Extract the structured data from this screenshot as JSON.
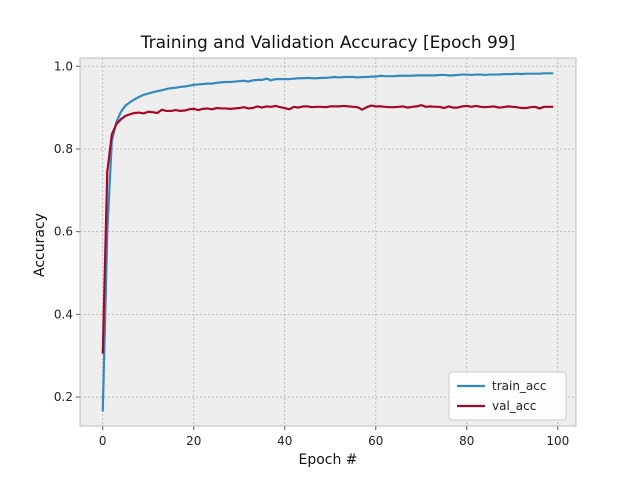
{
  "chart_data": {
    "type": "line",
    "title": "Training and Validation Accuracy [Epoch 99]",
    "xlabel": "Epoch #",
    "ylabel": "Accuracy",
    "xlim": [
      -5,
      104
    ],
    "ylim": [
      0.13,
      1.02
    ],
    "xticks": [
      0,
      20,
      40,
      60,
      80,
      100
    ],
    "yticks": [
      0.2,
      0.4,
      0.6,
      0.8,
      1.0
    ],
    "ytick_labels": [
      "0.2",
      "0.4",
      "0.6",
      "0.8",
      "1.0"
    ],
    "grid": true,
    "legend_position": "lower-right",
    "plot_background": "#eeeeee",
    "grid_color": "#b0b0b0",
    "series": [
      {
        "name": "train_acc",
        "color": "#348abd",
        "x": [
          0,
          1,
          2,
          3,
          4,
          5,
          6,
          7,
          8,
          9,
          10,
          11,
          12,
          13,
          14,
          15,
          16,
          17,
          18,
          19,
          20,
          21,
          22,
          23,
          24,
          25,
          26,
          27,
          28,
          29,
          30,
          31,
          32,
          33,
          34,
          35,
          36,
          37,
          38,
          39,
          40,
          41,
          42,
          43,
          44,
          45,
          46,
          47,
          48,
          49,
          50,
          51,
          52,
          53,
          54,
          55,
          56,
          57,
          58,
          59,
          60,
          61,
          62,
          63,
          64,
          65,
          66,
          67,
          68,
          69,
          70,
          71,
          72,
          73,
          74,
          75,
          76,
          77,
          78,
          79,
          80,
          81,
          82,
          83,
          84,
          85,
          86,
          87,
          88,
          89,
          90,
          91,
          92,
          93,
          94,
          95,
          96,
          97,
          98,
          99
        ],
        "y": [
          0.165,
          0.6,
          0.82,
          0.865,
          0.89,
          0.905,
          0.913,
          0.92,
          0.926,
          0.931,
          0.934,
          0.937,
          0.94,
          0.942,
          0.945,
          0.947,
          0.948,
          0.95,
          0.951,
          0.953,
          0.955,
          0.956,
          0.957,
          0.958,
          0.958,
          0.96,
          0.961,
          0.962,
          0.962,
          0.963,
          0.964,
          0.965,
          0.963,
          0.966,
          0.967,
          0.967,
          0.97,
          0.966,
          0.969,
          0.969,
          0.969,
          0.969,
          0.97,
          0.971,
          0.971,
          0.972,
          0.971,
          0.971,
          0.972,
          0.972,
          0.973,
          0.974,
          0.973,
          0.974,
          0.974,
          0.974,
          0.973,
          0.974,
          0.974,
          0.975,
          0.975,
          0.977,
          0.976,
          0.976,
          0.976,
          0.977,
          0.977,
          0.977,
          0.977,
          0.978,
          0.978,
          0.978,
          0.978,
          0.978,
          0.979,
          0.979,
          0.978,
          0.978,
          0.979,
          0.98,
          0.98,
          0.979,
          0.98,
          0.98,
          0.979,
          0.98,
          0.98,
          0.98,
          0.981,
          0.981,
          0.981,
          0.982,
          0.981,
          0.982,
          0.982,
          0.982,
          0.982,
          0.983,
          0.983,
          0.983
        ]
      },
      {
        "name": "val_acc",
        "color": "#a60628",
        "x": [
          0,
          1,
          2,
          3,
          4,
          5,
          6,
          7,
          8,
          9,
          10,
          11,
          12,
          13,
          14,
          15,
          16,
          17,
          18,
          19,
          20,
          21,
          22,
          23,
          24,
          25,
          26,
          27,
          28,
          29,
          30,
          31,
          32,
          33,
          34,
          35,
          36,
          37,
          38,
          39,
          40,
          41,
          42,
          43,
          44,
          45,
          46,
          47,
          48,
          49,
          50,
          51,
          52,
          53,
          54,
          55,
          56,
          57,
          58,
          59,
          60,
          61,
          62,
          63,
          64,
          65,
          66,
          67,
          68,
          69,
          70,
          71,
          72,
          73,
          74,
          75,
          76,
          77,
          78,
          79,
          80,
          81,
          82,
          83,
          84,
          85,
          86,
          87,
          88,
          89,
          90,
          91,
          92,
          93,
          94,
          95,
          96,
          97,
          98,
          99
        ],
        "y": [
          0.305,
          0.745,
          0.835,
          0.86,
          0.872,
          0.88,
          0.884,
          0.887,
          0.888,
          0.886,
          0.89,
          0.889,
          0.887,
          0.895,
          0.892,
          0.892,
          0.894,
          0.892,
          0.893,
          0.896,
          0.897,
          0.894,
          0.897,
          0.898,
          0.896,
          0.899,
          0.898,
          0.898,
          0.897,
          0.898,
          0.899,
          0.901,
          0.898,
          0.899,
          0.903,
          0.9,
          0.903,
          0.902,
          0.904,
          0.901,
          0.899,
          0.896,
          0.902,
          0.9,
          0.903,
          0.903,
          0.901,
          0.902,
          0.902,
          0.901,
          0.903,
          0.903,
          0.903,
          0.904,
          0.903,
          0.902,
          0.901,
          0.895,
          0.901,
          0.905,
          0.903,
          0.903,
          0.902,
          0.901,
          0.901,
          0.902,
          0.903,
          0.9,
          0.902,
          0.903,
          0.906,
          0.902,
          0.903,
          0.902,
          0.902,
          0.899,
          0.903,
          0.9,
          0.9,
          0.903,
          0.904,
          0.902,
          0.904,
          0.902,
          0.901,
          0.902,
          0.903,
          0.9,
          0.901,
          0.903,
          0.902,
          0.901,
          0.899,
          0.899,
          0.901,
          0.902,
          0.898,
          0.902,
          0.902,
          0.902
        ]
      }
    ]
  }
}
